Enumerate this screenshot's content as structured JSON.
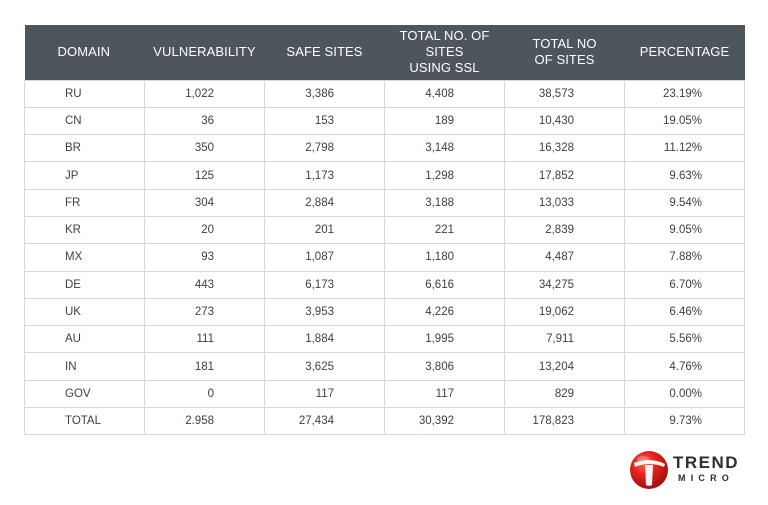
{
  "table": {
    "headers": [
      "DOMAIN",
      "VULNERABILITY",
      "SAFE SITES",
      "TOTAL NO. OF SITES\nUSING  SSL",
      "TOTAL NO\nOF SITES",
      "PERCENTAGE"
    ],
    "rows": [
      [
        "RU",
        "1,022",
        "3,386",
        "4,408",
        "38,573",
        "23.19%"
      ],
      [
        "CN",
        "36",
        "153",
        "189",
        "10,430",
        "19.05%"
      ],
      [
        "BR",
        "350",
        "2,798",
        "3,148",
        "16,328",
        "11.12%"
      ],
      [
        "JP",
        "125",
        "1,173",
        "1,298",
        "17,852",
        "9.63%"
      ],
      [
        "FR",
        "304",
        "2,884",
        "3,188",
        "13,033",
        "9.54%"
      ],
      [
        "KR",
        "20",
        "201",
        "221",
        "2,839",
        "9.05%"
      ],
      [
        "MX",
        "93",
        "1,087",
        "1,180",
        "4,487",
        "7.88%"
      ],
      [
        "DE",
        "443",
        "6,173",
        "6,616",
        "34,275",
        "6.70%"
      ],
      [
        "UK",
        "273",
        "3,953",
        "4,226",
        "19,062",
        "6.46%"
      ],
      [
        "AU",
        "111",
        "1,884",
        "1,995",
        "7,911",
        "5.56%"
      ],
      [
        "IN",
        "181",
        "3,625",
        "3,806",
        "13,204",
        "4.76%"
      ],
      [
        "GOV",
        "0",
        "117",
        "117",
        "829",
        "0.00%"
      ],
      [
        "TOTAL",
        "2.958",
        "27,434",
        "30,392",
        "178,823",
        "9.73%"
      ]
    ]
  },
  "logo": {
    "word1": "TREND",
    "word2": "MICRO",
    "brand_color": "#d71920",
    "icon": "trend-micro-ball-icon"
  },
  "colors": {
    "header_bg": "#4d555d",
    "grid_line": "#d6d9dc"
  }
}
